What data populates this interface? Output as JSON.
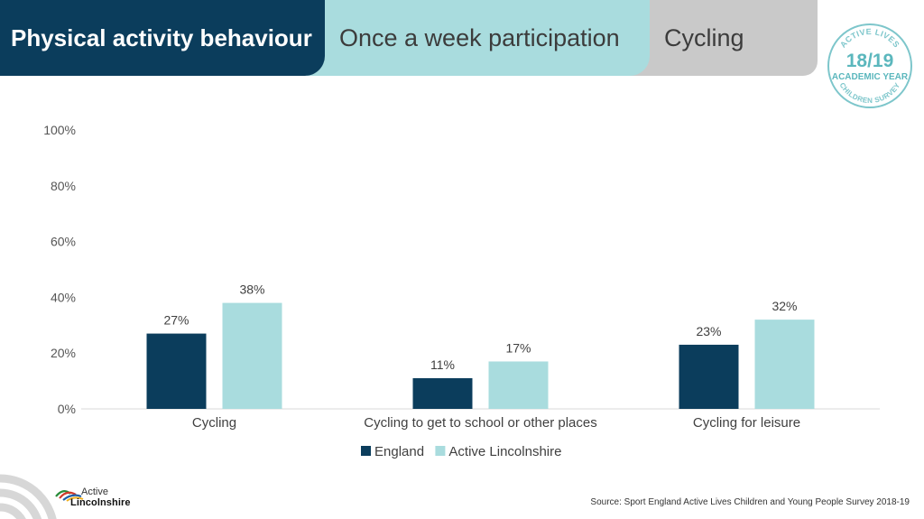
{
  "header": {
    "tab_main": "Physical activity behaviour",
    "tab_sub": "Once a week participation",
    "tab_topic": "Cycling"
  },
  "badge": {
    "top_text": "ACTIVE LIVES",
    "years": "18/19",
    "academic": "ACADEMIC YEAR",
    "bottom_text": "CHILDREN SURVEY"
  },
  "colors": {
    "dark_navy": "#0b3d5c",
    "light_teal": "#a9dcde",
    "grey": "#c9c9c9"
  },
  "chart_data": {
    "type": "bar",
    "categories": [
      "Cycling",
      "Cycling to get to school or other places",
      "Cycling for leisure"
    ],
    "series": [
      {
        "name": "England",
        "values": [
          27,
          11,
          23
        ],
        "labels": [
          "27%",
          "11%",
          "23%"
        ],
        "color": "#0b3d5c"
      },
      {
        "name": "Active Lincolnshire",
        "values": [
          38,
          17,
          32
        ],
        "labels": [
          "38%",
          "17%",
          "32%"
        ],
        "color": "#a9dcde"
      }
    ],
    "yticks": [
      "0%",
      "20%",
      "40%",
      "60%",
      "80%",
      "100%"
    ],
    "ylim": [
      0,
      100
    ],
    "grid": false,
    "legend": "bottom-center"
  },
  "footer": {
    "source": "Source: Sport England Active Lives Children and Young People Survey 2018-19",
    "logo_line1": "Active",
    "logo_line2": "Lincolnshire"
  }
}
